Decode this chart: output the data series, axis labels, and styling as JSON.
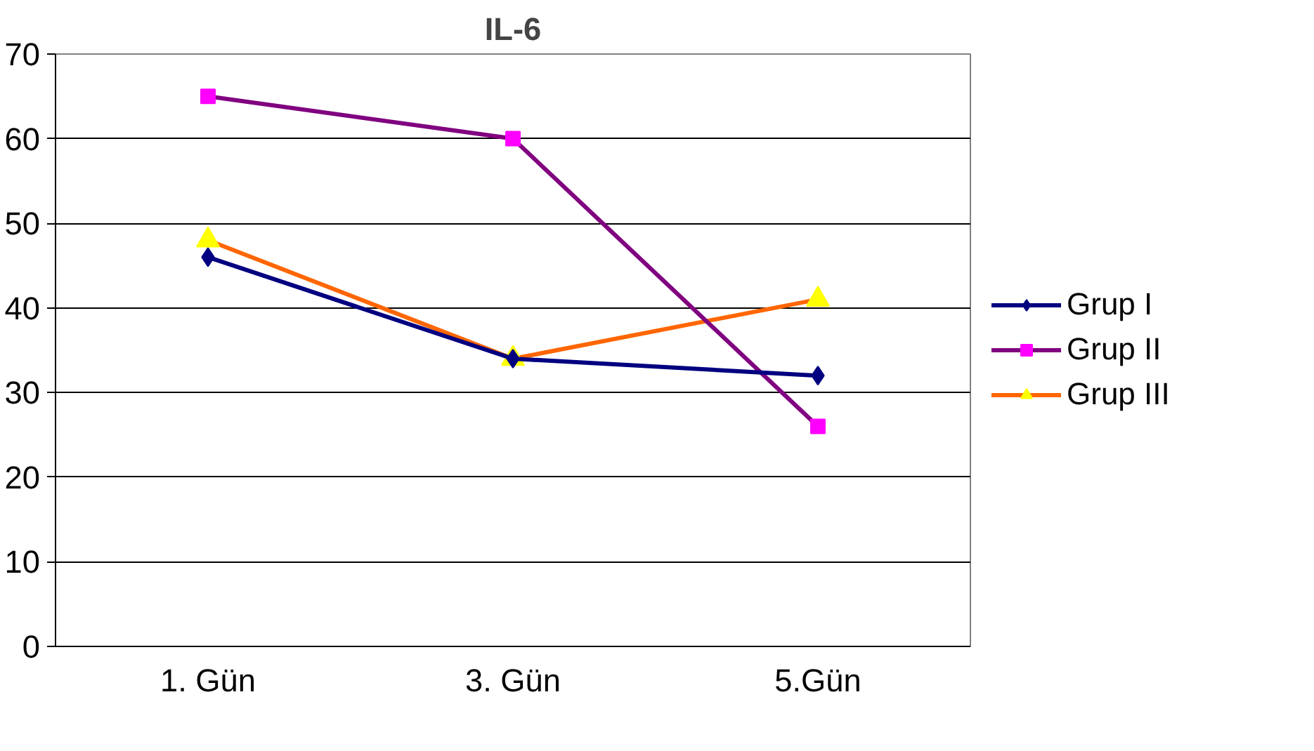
{
  "chart_data": {
    "type": "line",
    "title": "IL-6",
    "categories": [
      "1. Gün",
      "3. Gün",
      "5.Gün"
    ],
    "series": [
      {
        "name": "Grup I",
        "color": "#000080",
        "colors": [
          "#000080",
          "#000080",
          "#000080"
        ],
        "marker": "diamond",
        "values": [
          46,
          34,
          32
        ]
      },
      {
        "name": "Grup II",
        "color": "#800080",
        "colors": [
          "#ff00ff",
          "#ff00ff",
          "#ff00ff"
        ],
        "marker": "square",
        "values": [
          65,
          60,
          26
        ]
      },
      {
        "name": "Grup III",
        "color": "#ff6600",
        "colors": [
          "#ffff00",
          "#ffff00",
          "#ffff00"
        ],
        "marker": "triangle",
        "values": [
          48,
          34,
          41
        ]
      }
    ],
    "ylim": [
      0,
      70
    ],
    "yticks": [
      0,
      10,
      20,
      30,
      40,
      50,
      60,
      70
    ],
    "grid": "y",
    "legend": "right",
    "line_style": "solid"
  }
}
